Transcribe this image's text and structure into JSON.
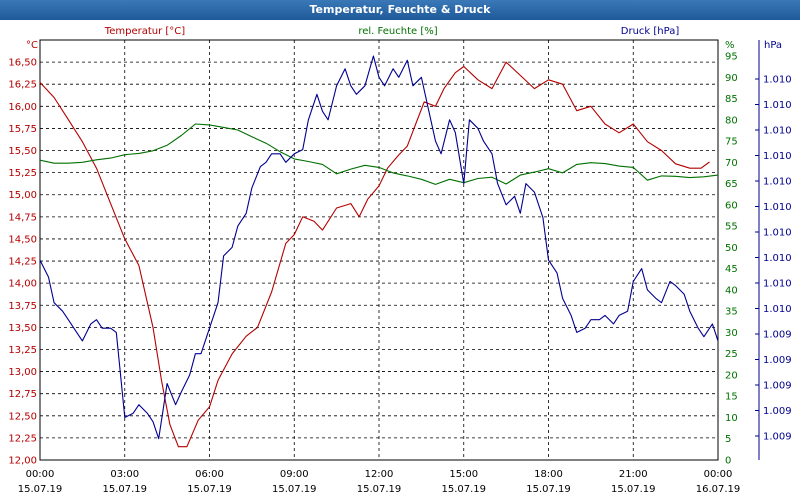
{
  "window": {
    "title": "Temperatur, Feuchte & Druck"
  },
  "colors": {
    "temperature": "#b40000",
    "humidity": "#007000",
    "pressure": "#000090",
    "grid": "#000000",
    "title_bar": "#2a65a8"
  },
  "chart_data": {
    "type": "line",
    "title": "Temperatur, Feuchte & Druck",
    "axes": {
      "temperature": {
        "label": "Temperatur [°C]",
        "unit": "°C",
        "ylim": [
          12.0,
          16.75
        ],
        "ticks": [
          "12,00",
          "12,25",
          "12,50",
          "12,75",
          "13,00",
          "13,25",
          "13,50",
          "13,75",
          "14,00",
          "14,25",
          "14,50",
          "14,75",
          "15,00",
          "15,25",
          "15,50",
          "15,75",
          "16,00",
          "16,25",
          "16,50"
        ]
      },
      "humidity": {
        "label": "rel. Feuchte [%]",
        "unit": "%",
        "ylim": [
          0,
          95
        ],
        "ticks": [
          "0",
          "5",
          "10",
          "15",
          "20",
          "25",
          "30",
          "35",
          "40",
          "45",
          "50",
          "55",
          "60",
          "65",
          "70",
          "75",
          "80",
          "85",
          "90",
          "95"
        ]
      },
      "pressure": {
        "label": "Druck [hPa]",
        "unit": "hPa",
        "ticks": [
          "1.009",
          "1.009",
          "1.009",
          "1.009",
          "1.009",
          "1.010",
          "1.010",
          "1.010",
          "1.010",
          "1.010",
          "1.010",
          "1.010",
          "1.010",
          "1.010",
          "1.010"
        ]
      }
    },
    "x_ticks": [
      {
        "time": "00:00",
        "date": "15.07.19"
      },
      {
        "time": "03:00",
        "date": "15.07.19"
      },
      {
        "time": "06:00",
        "date": "15.07.19"
      },
      {
        "time": "09:00",
        "date": "15.07.19"
      },
      {
        "time": "12:00",
        "date": "15.07.19"
      },
      {
        "time": "15:00",
        "date": "15.07.19"
      },
      {
        "time": "18:00",
        "date": "15.07.19"
      },
      {
        "time": "21:00",
        "date": "15.07.19"
      },
      {
        "time": "00:00",
        "date": "16.07.19"
      }
    ],
    "x_hours_range": [
      0,
      24
    ],
    "grid": true,
    "series": [
      {
        "name": "Temperatur [°C]",
        "key": "temperature",
        "axis": "temperature",
        "points": [
          [
            0,
            16.27
          ],
          [
            0.5,
            16.1
          ],
          [
            1,
            15.85
          ],
          [
            1.5,
            15.6
          ],
          [
            2,
            15.3
          ],
          [
            2.5,
            14.9
          ],
          [
            3,
            14.5
          ],
          [
            3.5,
            14.2
          ],
          [
            4,
            13.5
          ],
          [
            4.3,
            12.9
          ],
          [
            4.6,
            12.4
          ],
          [
            4.9,
            12.15
          ],
          [
            5.2,
            12.15
          ],
          [
            5.6,
            12.45
          ],
          [
            6,
            12.6
          ],
          [
            6.3,
            12.9
          ],
          [
            6.8,
            13.2
          ],
          [
            7.3,
            13.4
          ],
          [
            7.7,
            13.5
          ],
          [
            8.2,
            13.9
          ],
          [
            8.7,
            14.45
          ],
          [
            9,
            14.55
          ],
          [
            9.3,
            14.75
          ],
          [
            9.7,
            14.7
          ],
          [
            10,
            14.6
          ],
          [
            10.5,
            14.85
          ],
          [
            11,
            14.9
          ],
          [
            11.3,
            14.75
          ],
          [
            11.6,
            14.95
          ],
          [
            12,
            15.1
          ],
          [
            12.3,
            15.3
          ],
          [
            12.7,
            15.45
          ],
          [
            13,
            15.55
          ],
          [
            13.3,
            15.8
          ],
          [
            13.6,
            16.05
          ],
          [
            14,
            16.0
          ],
          [
            14.3,
            16.2
          ],
          [
            14.7,
            16.38
          ],
          [
            15,
            16.45
          ],
          [
            15.5,
            16.3
          ],
          [
            16,
            16.2
          ],
          [
            16.5,
            16.5
          ],
          [
            17,
            16.35
          ],
          [
            17.5,
            16.2
          ],
          [
            18,
            16.3
          ],
          [
            18.5,
            16.25
          ],
          [
            19,
            15.95
          ],
          [
            19.5,
            16.0
          ],
          [
            20,
            15.8
          ],
          [
            20.5,
            15.7
          ],
          [
            21,
            15.8
          ],
          [
            21.5,
            15.6
          ],
          [
            22,
            15.5
          ],
          [
            22.5,
            15.35
          ],
          [
            23,
            15.3
          ],
          [
            23.4,
            15.3
          ],
          [
            23.7,
            15.37
          ]
        ]
      },
      {
        "name": "rel. Feuchte [%]",
        "key": "humidity",
        "axis": "humidity",
        "points": [
          [
            0,
            70.5
          ],
          [
            0.5,
            69.8
          ],
          [
            1,
            69.8
          ],
          [
            1.5,
            70
          ],
          [
            2,
            70.6
          ],
          [
            2.5,
            71
          ],
          [
            3,
            71.8
          ],
          [
            3.5,
            72.1
          ],
          [
            4,
            72.7
          ],
          [
            4.5,
            74
          ],
          [
            5,
            76.3
          ],
          [
            5.5,
            79
          ],
          [
            6,
            78.8
          ],
          [
            6.5,
            78.2
          ],
          [
            7,
            77.6
          ],
          [
            7.5,
            76
          ],
          [
            8,
            74.5
          ],
          [
            8.5,
            72.5
          ],
          [
            9,
            70.8
          ],
          [
            9.5,
            70.2
          ],
          [
            10,
            69.5
          ],
          [
            10.5,
            67.3
          ],
          [
            11,
            68.4
          ],
          [
            11.5,
            69.3
          ],
          [
            12,
            68.8
          ],
          [
            12.5,
            67.5
          ],
          [
            13,
            66.8
          ],
          [
            13.5,
            66
          ],
          [
            14,
            64.8
          ],
          [
            14.5,
            66
          ],
          [
            15,
            65.2
          ],
          [
            15.5,
            66.2
          ],
          [
            16,
            66.5
          ],
          [
            16.5,
            64.9
          ],
          [
            17,
            67
          ],
          [
            17.5,
            67.7
          ],
          [
            18,
            68.5
          ],
          [
            18.5,
            67.5
          ],
          [
            19,
            69.5
          ],
          [
            19.5,
            69.9
          ],
          [
            20,
            69.7
          ],
          [
            20.5,
            69.1
          ],
          [
            21,
            68.8
          ],
          [
            21.5,
            65.8
          ],
          [
            22,
            66.8
          ],
          [
            22.5,
            66.7
          ],
          [
            23,
            66.4
          ],
          [
            23.5,
            66.6
          ],
          [
            24,
            67
          ]
        ]
      },
      {
        "name": "Druck [hPa]",
        "key": "pressure",
        "axis": "pressure",
        "points": [
          [
            0,
            47
          ],
          [
            0.3,
            43
          ],
          [
            0.5,
            37
          ],
          [
            0.8,
            35
          ],
          [
            1,
            33
          ],
          [
            1.3,
            30
          ],
          [
            1.5,
            28
          ],
          [
            1.8,
            32
          ],
          [
            2,
            33
          ],
          [
            2.2,
            31
          ],
          [
            2.5,
            31
          ],
          [
            2.7,
            30
          ],
          [
            3,
            10
          ],
          [
            3.3,
            11
          ],
          [
            3.5,
            13
          ],
          [
            3.8,
            11
          ],
          [
            4,
            9
          ],
          [
            4.2,
            5
          ],
          [
            4.5,
            18
          ],
          [
            4.8,
            13
          ],
          [
            5,
            16
          ],
          [
            5.3,
            20
          ],
          [
            5.5,
            25
          ],
          [
            5.7,
            25
          ],
          [
            6,
            31
          ],
          [
            6.3,
            37
          ],
          [
            6.5,
            48
          ],
          [
            6.8,
            50
          ],
          [
            7,
            55
          ],
          [
            7.3,
            58
          ],
          [
            7.5,
            64
          ],
          [
            7.8,
            69
          ],
          [
            8,
            70
          ],
          [
            8.2,
            72
          ],
          [
            8.5,
            72
          ],
          [
            8.7,
            70
          ],
          [
            9,
            72
          ],
          [
            9.3,
            73
          ],
          [
            9.5,
            80
          ],
          [
            9.8,
            86
          ],
          [
            10,
            82
          ],
          [
            10.2,
            80
          ],
          [
            10.5,
            88
          ],
          [
            10.8,
            92
          ],
          [
            11,
            88
          ],
          [
            11.2,
            86
          ],
          [
            11.5,
            88
          ],
          [
            11.8,
            95
          ],
          [
            12,
            90
          ],
          [
            12.2,
            88
          ],
          [
            12.5,
            92
          ],
          [
            12.7,
            90
          ],
          [
            13,
            94
          ],
          [
            13.2,
            88
          ],
          [
            13.5,
            90
          ],
          [
            13.7,
            84
          ],
          [
            14,
            75
          ],
          [
            14.2,
            72
          ],
          [
            14.5,
            80
          ],
          [
            14.7,
            77
          ],
          [
            15,
            65
          ],
          [
            15.2,
            80
          ],
          [
            15.5,
            78
          ],
          [
            15.7,
            75
          ],
          [
            16,
            72
          ],
          [
            16.2,
            65
          ],
          [
            16.5,
            60
          ],
          [
            16.8,
            62
          ],
          [
            17,
            58
          ],
          [
            17.2,
            65
          ],
          [
            17.5,
            63
          ],
          [
            17.8,
            57
          ],
          [
            18,
            47
          ],
          [
            18.3,
            44
          ],
          [
            18.5,
            38
          ],
          [
            18.8,
            34
          ],
          [
            19,
            30
          ],
          [
            19.3,
            31
          ],
          [
            19.5,
            33
          ],
          [
            19.8,
            33
          ],
          [
            20,
            34
          ],
          [
            20.3,
            32
          ],
          [
            20.5,
            34
          ],
          [
            20.8,
            35
          ],
          [
            21,
            42
          ],
          [
            21.3,
            45
          ],
          [
            21.5,
            40
          ],
          [
            21.8,
            38
          ],
          [
            22,
            37
          ],
          [
            22.3,
            42
          ],
          [
            22.5,
            41
          ],
          [
            22.8,
            39
          ],
          [
            23,
            35
          ],
          [
            23.3,
            31
          ],
          [
            23.5,
            29
          ],
          [
            23.8,
            32
          ],
          [
            24,
            28
          ]
        ]
      }
    ]
  }
}
